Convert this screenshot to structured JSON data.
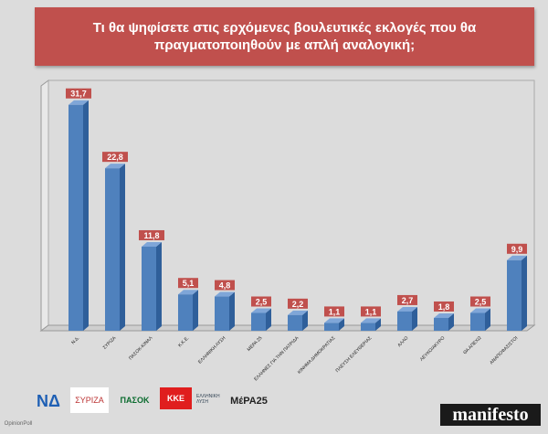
{
  "chart_data": {
    "type": "bar",
    "title": "Τι θα ψηφίσετε στις ερχόμενες βουλευτικές εκλογές που θα πραγματοποιηθούν με απλή αναλογική;",
    "categories": [
      "Ν.Δ.",
      "ΣΥΡΙΖΑ",
      "ΠΑΣΟΚ-ΚΙΝΑΛ",
      "Κ.Κ.Ε.",
      "ΕΛΛΗΝΙΚΗ ΛΥΣΗ",
      "ΜΕΡΑ 25",
      "ΕΛΛΗΝΕΣ ΓΙΑ ΤΗΝ ΠΑΤΡΙΔΑ",
      "ΚΙΝΗΜΑ ΔΗΜΟΚΡΑΤΙΑΣ",
      "ΠΛΕΥΣΗ ΕΛΕΥΘΕΡΙΑΣ",
      "ΑΛΛΟ",
      "ΛΕΥΚΟ/ΑΚΥΡΟ",
      "ΘΑ ΑΠΕΧΩ",
      "ΑΝΑΠΟΦΑΣΙΣΤΟΙ"
    ],
    "values": [
      31.7,
      22.8,
      11.8,
      5.1,
      4.8,
      2.5,
      2.2,
      1.1,
      1.1,
      2.7,
      1.8,
      2.5,
      9.9
    ],
    "value_labels": [
      "31,7",
      "22,8",
      "11,8",
      "5,1",
      "4,8",
      "2,5",
      "2,2",
      "1,1",
      "1,1",
      "2,7",
      "1,8",
      "2,5",
      "9,9"
    ],
    "ylim": [
      0,
      35
    ],
    "bar_color": "#4f81bd",
    "label_color": "#c0504d"
  },
  "logos": {
    "nd": "ΝΔ",
    "syriza": "ΣΥΡΙΖΑ",
    "pasok": "ΠΑΣΟΚ",
    "kke": "ΚΚΕ",
    "elliniki_lysi": "ΕΛΛΗΝΙΚΗ ΛΥΣΗ",
    "mera25": "ΜέΡΑ25",
    "opinion_poll": "OpinionPoll",
    "manifesto": "manifesto"
  }
}
